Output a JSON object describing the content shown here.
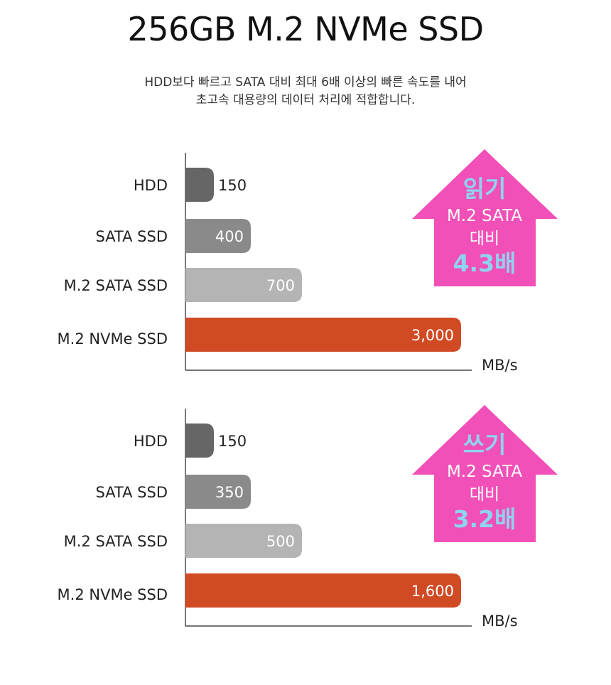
{
  "title": "256GB M.2 NVMe SSD",
  "subtitle": {
    "line1": "HDD보다 빠르고 SATA 대비 최대 6배 이상의 빠른 속도를 내어",
    "line2": "초고속 대용량의 데이터 처리에 적합합니다."
  },
  "colors": {
    "hdd": "#666666",
    "sata_ssd": "#8a8a8a",
    "m2_sata_ssd": "#b5b4b4",
    "m2_nvme_ssd": "#d04a24",
    "badge_fill": "#f050b8",
    "badge_accent": "#8fd3f0",
    "badge_text": "#ffffff"
  },
  "chart_data": [
    {
      "type": "bar",
      "orientation": "horizontal",
      "categories": [
        "HDD",
        "SATA SSD",
        "M.2 SATA SSD",
        "M.2 NVMe SSD"
      ],
      "values": [
        150,
        400,
        700,
        3000
      ],
      "value_labels": [
        "150",
        "400",
        "700",
        "3,000"
      ],
      "unit": "MB/s",
      "badge": {
        "heading": "읽기",
        "line2": "M.2 SATA",
        "line3": "대비",
        "multiplier": "4.3배"
      }
    },
    {
      "type": "bar",
      "orientation": "horizontal",
      "categories": [
        "HDD",
        "SATA SSD",
        "M.2 SATA SSD",
        "M.2 NVMe SSD"
      ],
      "values": [
        150,
        350,
        500,
        1600
      ],
      "value_labels": [
        "150",
        "350",
        "500",
        "1,600"
      ],
      "unit": "MB/s",
      "badge": {
        "heading": "쓰기",
        "line2": "M.2 SATA",
        "line3": "대비",
        "multiplier": "3.2배"
      }
    }
  ]
}
